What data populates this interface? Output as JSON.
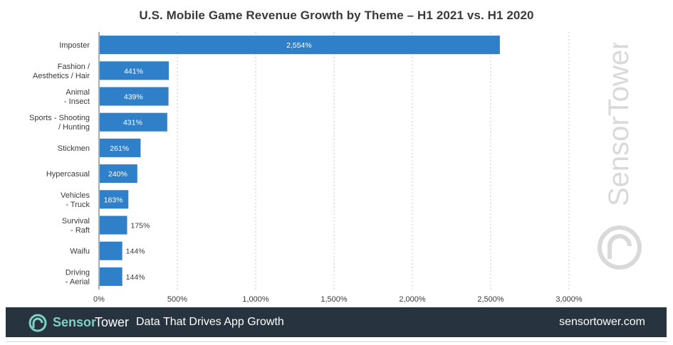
{
  "chart_data": {
    "type": "bar",
    "orientation": "horizontal",
    "title": "U.S. Mobile Game Revenue Growth by Theme – H1 2021 vs. H1 2020",
    "categories": [
      [
        "Imposter"
      ],
      [
        "Fashion /",
        "Aesthetics / Hair"
      ],
      [
        "Animal",
        "- Insect"
      ],
      [
        "Sports - Shooting",
        "/ Hunting"
      ],
      [
        "Stickmen"
      ],
      [
        "Hypercasual"
      ],
      [
        "Vehicles",
        "- Truck"
      ],
      [
        "Survival",
        "- Raft"
      ],
      [
        "Waifu"
      ],
      [
        "Driving",
        "- Aerial"
      ]
    ],
    "values": [
      2554,
      441,
      439,
      431,
      261,
      240,
      183,
      175,
      144,
      144
    ],
    "value_labels": [
      "2,554%",
      "441%",
      "439%",
      "431%",
      "261%",
      "240%",
      "183%",
      "175%",
      "144%",
      "144%"
    ],
    "xlim": [
      0,
      3000
    ],
    "xticks": [
      0,
      500,
      1000,
      1500,
      2000,
      2500,
      3000
    ],
    "xtick_labels": [
      "0%",
      "500%",
      "1,000%",
      "1,500%",
      "2,000%",
      "2,500%",
      "3,000%"
    ],
    "xlabel": "",
    "ylabel": "",
    "grid": "vertical dotted",
    "bar_color": "#2f80c9"
  },
  "watermark": {
    "text": "SensorTower"
  },
  "footer": {
    "brand_part1": "Sensor",
    "brand_part2": "Tower",
    "tagline": "Data That Drives App Growth",
    "url": "sensortower.com",
    "background": "#27333f",
    "brand_color": "#7fd1c4"
  }
}
